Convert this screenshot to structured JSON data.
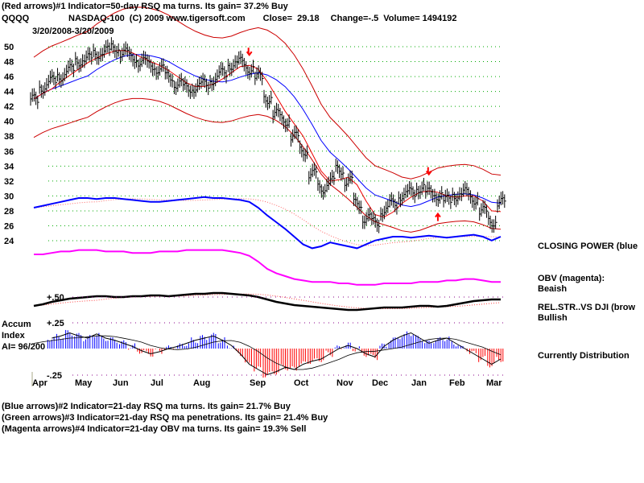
{
  "header": {
    "line1": "(Red arrows)#1 Indicator=50-day RSQ ma turns. Its gain= 37.2% Buy",
    "symbol": "QQQQ",
    "title": "NASDAQ-100  (C) 2009 www.tigersoft.com",
    "close": "Close=  29.18",
    "change": "Change=-.5",
    "volume": "Volume= 1494192",
    "range": "3/20/2008-3/20/2009"
  },
  "footer": [
    "(Blue arrows)#2 Indicator=21-day RSQ ma turns. Its gain= 21.7% Buy",
    "(Green arrows)#3 Indicator=21-day RSQ ma penetrations. Its gain= 21.4% Buy",
    "(Magenta arrows)#4 Indicator=21-day OBV ma turns. Its gain= 19.3% Sell"
  ],
  "side": {
    "cp": "CLOSING POWER (blue",
    "obv": "OBV (magenta):",
    "obv_state": "Beaish",
    "rs": "REL.STR..VS DJI (brow",
    "rs_state": "Bullish",
    "accum_state": "Currently Distribution"
  },
  "accum_label": {
    "l1": "Accum",
    "l2": "Index",
    "l3": "AI= 96/200"
  },
  "chart_data": {
    "type": "line",
    "title": "QQQQ NASDAQ-100",
    "x_tick_labels": [
      "Apr",
      "May",
      "Jun",
      "Jul",
      "Aug",
      "Sep",
      "Oct",
      "Nov",
      "Dec",
      "Jan",
      "Feb",
      "Mar"
    ],
    "y_tick_labels": [
      "50",
      "48",
      "46",
      "44",
      "42",
      "40",
      "38",
      "36",
      "34",
      "32",
      "30",
      "28",
      "26",
      "24"
    ],
    "ylim": [
      24,
      50
    ],
    "price_close": [
      43,
      44.5,
      45.5,
      46,
      47,
      48,
      48.5,
      49,
      49.5,
      49.8,
      49.2,
      48.5,
      48,
      47.5,
      47,
      46,
      45,
      44.5,
      44.5,
      45,
      45.5,
      46.5,
      47.5,
      48,
      47,
      46,
      43,
      41,
      40,
      38,
      36,
      33,
      31,
      32,
      33.5,
      32,
      29,
      27,
      26.5,
      28,
      29,
      30,
      30.5,
      31,
      30.5,
      30,
      29.5,
      30,
      30.5,
      29.5,
      28,
      26.5,
      29.18
    ],
    "closing_power": [
      60,
      62,
      64,
      66,
      68,
      70,
      70,
      69,
      70,
      70,
      69,
      68,
      67,
      66,
      66,
      67,
      68,
      69,
      70,
      71,
      70,
      70,
      69,
      68,
      66,
      60,
      52,
      45,
      38,
      30,
      22,
      18,
      20,
      24,
      22,
      20,
      18,
      22,
      26,
      28,
      30,
      30,
      29,
      30,
      31,
      30,
      29,
      30,
      31,
      32,
      30,
      26,
      30
    ],
    "obv": [
      50,
      50,
      51,
      52,
      52,
      53,
      53,
      53,
      52,
      52,
      52,
      51,
      51,
      51,
      52,
      52,
      52,
      53,
      53,
      53,
      53,
      53,
      52,
      51,
      49,
      45,
      40,
      37,
      35,
      33,
      32,
      31,
      31,
      31,
      30,
      30,
      29,
      29,
      29,
      30,
      30,
      30,
      30,
      31,
      31,
      31,
      32,
      32,
      33,
      33,
      32,
      31,
      31
    ],
    "rel_strength": [
      40,
      42,
      45,
      47,
      49,
      50,
      51,
      52,
      52,
      51,
      51,
      52,
      52,
      53,
      53,
      52,
      53,
      54,
      55,
      55,
      56,
      56,
      55,
      54,
      53,
      51,
      48,
      45,
      43,
      41,
      40,
      39,
      38,
      37,
      36,
      35,
      35,
      36,
      37,
      38,
      38,
      38,
      39,
      40,
      40,
      39,
      40,
      42,
      44,
      46,
      47,
      48,
      48
    ],
    "accum_index": [
      0.05,
      0.08,
      0.1,
      0.12,
      0.15,
      0.12,
      0.1,
      0.14,
      0.1,
      0.08,
      0.05,
      0.02,
      -0.02,
      -0.05,
      -0.03,
      0.0,
      0.02,
      0.05,
      0.08,
      0.1,
      0.12,
      0.08,
      0.03,
      -0.05,
      -0.15,
      -0.2,
      -0.25,
      -0.22,
      -0.18,
      -0.2,
      -0.15,
      -0.12,
      -0.1,
      -0.05,
      0.0,
      0.03,
      0.0,
      -0.05,
      -0.08,
      0.02,
      0.08,
      0.12,
      0.15,
      0.1,
      0.05,
      0.08,
      0.1,
      0.05,
      0.0,
      -0.05,
      -0.1,
      -0.15,
      -0.1
    ],
    "accum_ticks": [
      "+.50",
      "+.25",
      "-.25"
    ],
    "arrows": [
      {
        "type": "down",
        "index": 24,
        "value": 49
      },
      {
        "type": "down",
        "index": 44,
        "value": 33
      },
      {
        "type": "up",
        "index": 45,
        "value": 27.5
      }
    ]
  }
}
